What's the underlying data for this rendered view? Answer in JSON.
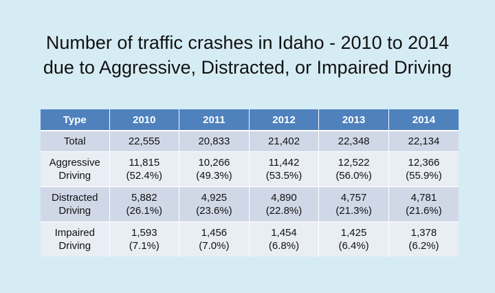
{
  "title": {
    "line1": "Number of traffic crashes in Idaho - 2010 to 2014",
    "line2": "due to Aggressive, Distracted, or Impaired Driving"
  },
  "table": {
    "headers": [
      "Type",
      "2010",
      "2011",
      "2012",
      "2013",
      "2014"
    ],
    "rows": [
      {
        "type": [
          "Total"
        ],
        "cells": [
          [
            "22,555"
          ],
          [
            "20,833"
          ],
          [
            "21,402"
          ],
          [
            "22,348"
          ],
          [
            "22,134"
          ]
        ]
      },
      {
        "type": [
          "Aggressive",
          "Driving"
        ],
        "cells": [
          [
            "11,815",
            "(52.4%)"
          ],
          [
            "10,266",
            "(49.3%)"
          ],
          [
            "11,442",
            "(53.5%)"
          ],
          [
            "12,522",
            "(56.0%)"
          ],
          [
            "12,366",
            "(55.9%)"
          ]
        ]
      },
      {
        "type": [
          "Distracted",
          "Driving"
        ],
        "cells": [
          [
            "5,882",
            "(26.1%)"
          ],
          [
            "4,925",
            "(23.6%)"
          ],
          [
            "4,890",
            "(22.8%)"
          ],
          [
            "4,757",
            "(21.3%)"
          ],
          [
            "4,781",
            "(21.6%)"
          ]
        ]
      },
      {
        "type": [
          "Impaired",
          "Driving"
        ],
        "cells": [
          [
            "1,593",
            "(7.1%)"
          ],
          [
            "1,456",
            "(7.0%)"
          ],
          [
            "1,454",
            "(6.8%)"
          ],
          [
            "1,425",
            "(6.4%)"
          ],
          [
            "1,378",
            "(6.2%)"
          ]
        ]
      }
    ]
  },
  "colors": {
    "background": "#d6ecf4",
    "header": "#4f81bd",
    "row_odd": "#d0d8e8",
    "row_even": "#e9edf4"
  }
}
